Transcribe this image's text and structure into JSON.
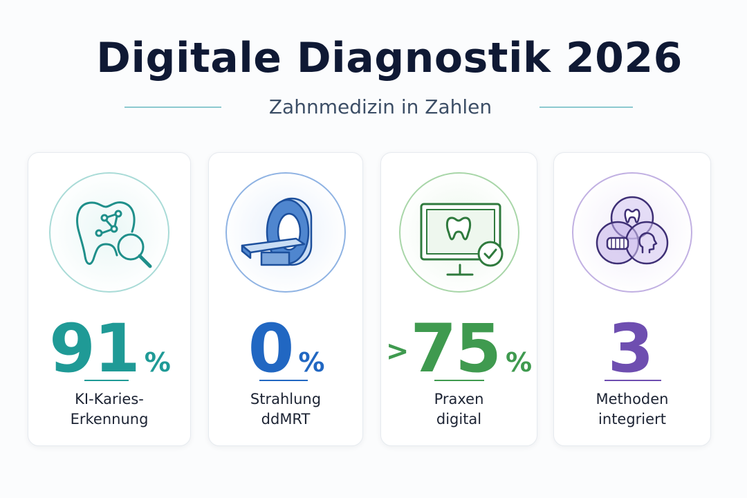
{
  "title": "Digitale Diagnostik 2026",
  "subtitle": "Zahnmedizin in Zahlen",
  "cards": [
    {
      "icon": "tooth-ai-search-icon",
      "prefix": "",
      "value": "91",
      "unit": "%",
      "label_line1": "KI-Karies-",
      "label_line2": "Erkennung",
      "color": "#1f9a96"
    },
    {
      "icon": "mri-scanner-icon",
      "prefix": "",
      "value": "0",
      "unit": "%",
      "label_line1": "Strahlung",
      "label_line2": "ddMRT",
      "color": "#2167c2"
    },
    {
      "icon": "monitor-tooth-check-icon",
      "prefix": ">",
      "value": "75",
      "unit": "%",
      "label_line1": "Praxen",
      "label_line2": "digital",
      "color": "#3f9a4f"
    },
    {
      "icon": "venn-methods-icon",
      "prefix": "",
      "value": "3",
      "unit": "",
      "label_line1": "Methoden",
      "label_line2": "integriert",
      "color": "#6e4eb0"
    }
  ]
}
